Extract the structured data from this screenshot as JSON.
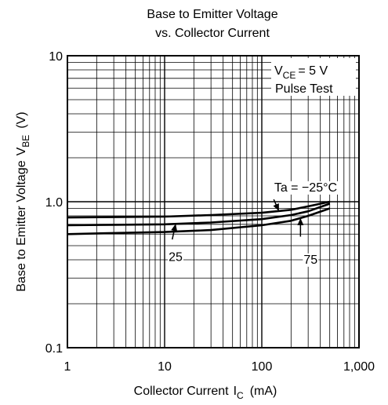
{
  "chart_data": {
    "type": "line",
    "title_lines": [
      "Base to Emitter Voltage",
      "vs. Collector Current"
    ],
    "xlabel": {
      "text": "Collector Current",
      "symbol": "I",
      "sub": "C",
      "unit": "(mA)"
    },
    "ylabel": {
      "text": "Base to Emitter Voltage",
      "symbol": "V",
      "sub": "BE",
      "unit": "(V)"
    },
    "x_scale": "log",
    "y_scale": "log",
    "xlim": [
      1,
      1000
    ],
    "ylim": [
      0.1,
      10
    ],
    "grid": true,
    "x_ticks": [
      {
        "value": 1,
        "label": "1"
      },
      {
        "value": 10,
        "label": "10"
      },
      {
        "value": 100,
        "label": "100"
      },
      {
        "value": 1000,
        "label": "1,000"
      }
    ],
    "y_ticks": [
      {
        "value": 0.1,
        "label": "0.1"
      },
      {
        "value": 1,
        "label": "1.0"
      },
      {
        "value": 10,
        "label": "10"
      }
    ],
    "conditions": {
      "vce": {
        "symbol": "V",
        "sub": "CE",
        "value": "= 5 V"
      },
      "pulse": "Pulse Test"
    },
    "series": [
      {
        "name": "Ta = −25°C",
        "x": [
          1,
          3,
          10,
          30,
          100,
          200,
          300,
          500
        ],
        "y": [
          0.78,
          0.785,
          0.79,
          0.81,
          0.84,
          0.88,
          0.93,
          1.0
        ]
      },
      {
        "name": "25",
        "x": [
          1,
          3,
          10,
          30,
          100,
          200,
          300,
          500
        ],
        "y": [
          0.69,
          0.695,
          0.7,
          0.72,
          0.76,
          0.81,
          0.86,
          0.97
        ]
      },
      {
        "name": "75",
        "x": [
          1,
          3,
          10,
          30,
          100,
          200,
          300,
          500
        ],
        "y": [
          0.6,
          0.61,
          0.62,
          0.64,
          0.69,
          0.74,
          0.8,
          0.9
        ]
      }
    ],
    "annotations": [
      {
        "text": "Ta = −25°C",
        "series": 0,
        "at_x": 150
      },
      {
        "text": "25",
        "series": 1,
        "at_x": 13
      },
      {
        "text": "75",
        "series": 2,
        "at_x": 250
      }
    ]
  }
}
